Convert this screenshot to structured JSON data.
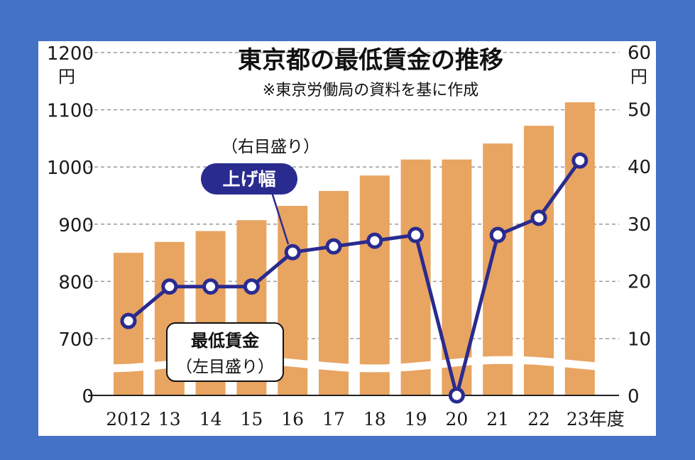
{
  "chart_data": {
    "type": "bar+line",
    "title": "東京都の最低賃金の推移",
    "subtitle": "※東京労働局の資料を基に作成",
    "x_labels": [
      "2012",
      "13",
      "14",
      "15",
      "16",
      "17",
      "18",
      "19",
      "20",
      "21",
      "22",
      "23年度"
    ],
    "left_axis": {
      "unit": "円",
      "ticks": [
        "0",
        "700",
        "800",
        "900",
        "1000",
        "1100",
        "1200"
      ],
      "tick_values": [
        0,
        700,
        800,
        900,
        1000,
        1100,
        1200
      ],
      "broken": true
    },
    "right_axis": {
      "unit": "円",
      "ticks": [
        "0",
        "10",
        "20",
        "30",
        "40",
        "50",
        "60"
      ],
      "tick_values": [
        0,
        10,
        20,
        30,
        40,
        50,
        60
      ]
    },
    "series": [
      {
        "name": "最低賃金",
        "axis": "left",
        "type": "bar",
        "values": [
          850,
          869,
          888,
          907,
          932,
          958,
          985,
          1013,
          1013,
          1041,
          1072,
          1113
        ]
      },
      {
        "name": "上げ幅",
        "axis": "right",
        "type": "line",
        "values": [
          13,
          19,
          19,
          19,
          25,
          26,
          27,
          28,
          0,
          28,
          31,
          41
        ]
      }
    ],
    "annotations": {
      "raise_axis_note": "（右目盛り）",
      "raise_label": "上げ幅",
      "wage_label": "最低賃金",
      "wage_axis_note": "（左目盛り）"
    },
    "colors": {
      "bar": "#e8a461",
      "line": "#2a2b8f",
      "marker_fill": "#ffffff",
      "background": "#4472c4"
    },
    "grid": "horizontal dashed"
  }
}
